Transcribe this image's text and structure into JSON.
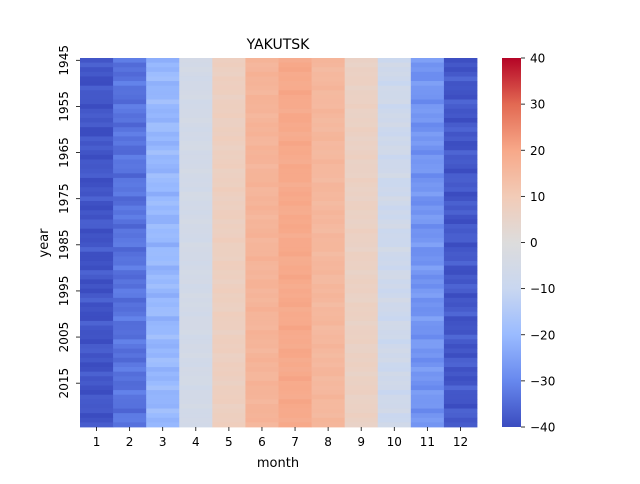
{
  "chart_data": {
    "type": "heatmap",
    "title": "YAKUTSK",
    "xlabel": "month",
    "ylabel": "year",
    "x_categories": [
      "1",
      "2",
      "3",
      "4",
      "5",
      "6",
      "7",
      "8",
      "9",
      "10",
      "11",
      "12"
    ],
    "y_tick_labels": [
      "1945",
      "1955",
      "1965",
      "1975",
      "1985",
      "1995",
      "2005",
      "2015"
    ],
    "year_range": [
      1945,
      2024
    ],
    "monthly_mean_temperature": [
      -38.5,
      -33.5,
      -20.5,
      -5.5,
      7.5,
      16.5,
      19.5,
      15.5,
      6.5,
      -7.5,
      -27.5,
      -38.0
    ],
    "colorbar": {
      "vmin": -40,
      "vmax": 40,
      "tick_labels": [
        "40",
        "30",
        "20",
        "10",
        "0",
        "−10",
        "−20",
        "−30",
        "−40"
      ],
      "colormap": "coolwarm",
      "color_stops": [
        "#3b4cc0",
        "#6788ee",
        "#9abbff",
        "#c9d7f0",
        "#dddcdc",
        "#f2cbb7",
        "#f7a889",
        "#e26952",
        "#b40426"
      ]
    },
    "grid": false
  }
}
